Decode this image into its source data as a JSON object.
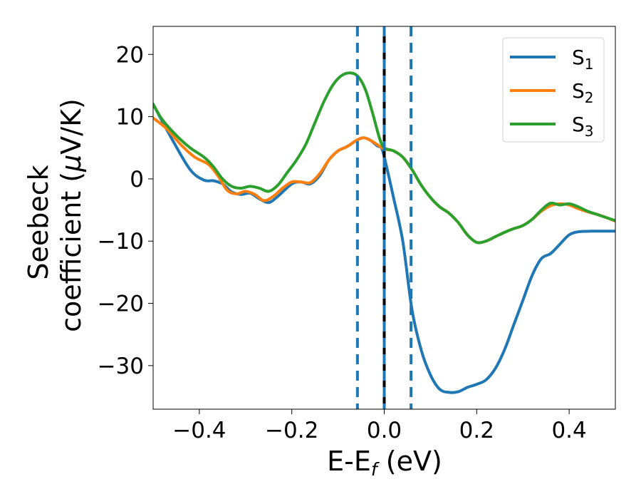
{
  "chart_data": {
    "type": "line",
    "xlabel": "E-E",
    "xlabel_sub": "f",
    "xlabel_unit": " (eV)",
    "ylabel_line1": "Seebeck",
    "ylabel_line2_text": "coefficient  (",
    "ylabel_mu": "μ",
    "ylabel_line2_unit": "V/K)",
    "xlim": [
      -0.5,
      0.5
    ],
    "ylim": [
      -37,
      24.5
    ],
    "x_ticks": [
      -0.4,
      -0.2,
      0.0,
      0.2,
      0.4
    ],
    "x_tick_labels": [
      "−0.4",
      "−0.2",
      "0.0",
      "0.2",
      "0.4"
    ],
    "y_ticks": [
      20,
      10,
      0,
      -10,
      -20,
      -30
    ],
    "y_tick_labels": [
      "20",
      "10",
      "0",
      "−10",
      "−20",
      "−30"
    ],
    "grid": false,
    "legend_position": "top-right",
    "vertical_lines": [
      {
        "x": -0.058,
        "style": "dashed",
        "color": "#1f77b4"
      },
      {
        "x": 0.0,
        "style": "solid-dashed",
        "color": "#000000"
      },
      {
        "x": 0.058,
        "style": "dashed",
        "color": "#1f77b4"
      }
    ],
    "series": [
      {
        "name": "S",
        "sub": "1",
        "color": "#1f77b4",
        "points": [
          [
            -0.5,
            12.0
          ],
          [
            -0.46,
            6.5
          ],
          [
            -0.42,
            1.5
          ],
          [
            -0.39,
            -0.2
          ],
          [
            -0.37,
            -0.3
          ],
          [
            -0.35,
            -0.8
          ],
          [
            -0.33,
            -2.1
          ],
          [
            -0.31,
            -2.5
          ],
          [
            -0.29,
            -2.3
          ],
          [
            -0.27,
            -3.2
          ],
          [
            -0.25,
            -3.8
          ],
          [
            -0.23,
            -2.8
          ],
          [
            -0.2,
            -0.8
          ],
          [
            -0.18,
            -0.5
          ],
          [
            -0.16,
            -0.8
          ],
          [
            -0.14,
            0.5
          ],
          [
            -0.12,
            3.0
          ],
          [
            -0.1,
            4.5
          ],
          [
            -0.08,
            5.2
          ],
          [
            -0.06,
            6.2
          ],
          [
            -0.045,
            6.6
          ],
          [
            -0.03,
            6.2
          ],
          [
            -0.015,
            5.3
          ],
          [
            -0.005,
            4.8
          ],
          [
            0.005,
            2.0
          ],
          [
            0.02,
            -3.0
          ],
          [
            0.04,
            -10.0
          ],
          [
            0.06,
            -21.0
          ],
          [
            0.08,
            -27.5
          ],
          [
            0.1,
            -31.5
          ],
          [
            0.12,
            -33.8
          ],
          [
            0.14,
            -34.3
          ],
          [
            0.16,
            -34.2
          ],
          [
            0.18,
            -33.5
          ],
          [
            0.2,
            -33.0
          ],
          [
            0.22,
            -32.3
          ],
          [
            0.24,
            -30.5
          ],
          [
            0.26,
            -27.5
          ],
          [
            0.28,
            -23.5
          ],
          [
            0.3,
            -19.5
          ],
          [
            0.32,
            -15.5
          ],
          [
            0.34,
            -12.8
          ],
          [
            0.36,
            -12.0
          ],
          [
            0.38,
            -10.5
          ],
          [
            0.4,
            -9.0
          ],
          [
            0.42,
            -8.5
          ],
          [
            0.45,
            -8.4
          ],
          [
            0.5,
            -8.4
          ]
        ]
      },
      {
        "name": "S",
        "sub": "2",
        "color": "#ff7f0e",
        "points": [
          [
            -0.5,
            9.8
          ],
          [
            -0.47,
            8.0
          ],
          [
            -0.44,
            5.5
          ],
          [
            -0.41,
            3.5
          ],
          [
            -0.38,
            2.3
          ],
          [
            -0.36,
            0.5
          ],
          [
            -0.34,
            -1.8
          ],
          [
            -0.32,
            -2.4
          ],
          [
            -0.3,
            -2.0
          ],
          [
            -0.28,
            -2.5
          ],
          [
            -0.26,
            -3.5
          ],
          [
            -0.24,
            -2.8
          ],
          [
            -0.22,
            -1.5
          ],
          [
            -0.2,
            -0.5
          ],
          [
            -0.18,
            -0.5
          ],
          [
            -0.16,
            -0.6
          ],
          [
            -0.14,
            0.8
          ],
          [
            -0.12,
            3.0
          ],
          [
            -0.1,
            4.5
          ],
          [
            -0.08,
            5.2
          ],
          [
            -0.06,
            6.2
          ],
          [
            -0.045,
            6.6
          ],
          [
            -0.03,
            6.2
          ],
          [
            -0.015,
            5.5
          ],
          [
            0.0,
            4.8
          ],
          [
            0.02,
            4.5
          ],
          [
            0.04,
            3.5
          ],
          [
            0.06,
            1.5
          ],
          [
            0.08,
            -1.0
          ],
          [
            0.1,
            -3.0
          ],
          [
            0.12,
            -4.5
          ],
          [
            0.14,
            -5.5
          ],
          [
            0.16,
            -7.0
          ],
          [
            0.18,
            -9.0
          ],
          [
            0.2,
            -10.2
          ],
          [
            0.22,
            -10.0
          ],
          [
            0.24,
            -9.3
          ],
          [
            0.26,
            -8.6
          ],
          [
            0.28,
            -8.0
          ],
          [
            0.3,
            -7.5
          ],
          [
            0.32,
            -6.5
          ],
          [
            0.34,
            -5.2
          ],
          [
            0.36,
            -4.3
          ],
          [
            0.38,
            -4.0
          ],
          [
            0.4,
            -4.2
          ],
          [
            0.42,
            -4.8
          ],
          [
            0.44,
            -5.3
          ],
          [
            0.46,
            -5.7
          ],
          [
            0.48,
            -6.2
          ],
          [
            0.5,
            -6.8
          ]
        ]
      },
      {
        "name": "S",
        "sub": "3",
        "color": "#2ca02c",
        "points": [
          [
            -0.5,
            12.0
          ],
          [
            -0.48,
            9.5
          ],
          [
            -0.45,
            7.0
          ],
          [
            -0.42,
            5.0
          ],
          [
            -0.39,
            3.5
          ],
          [
            -0.37,
            2.0
          ],
          [
            -0.35,
            0.0
          ],
          [
            -0.33,
            -1.2
          ],
          [
            -0.31,
            -1.5
          ],
          [
            -0.29,
            -1.2
          ],
          [
            -0.27,
            -1.5
          ],
          [
            -0.25,
            -2.0
          ],
          [
            -0.23,
            -1.0
          ],
          [
            -0.21,
            1.0
          ],
          [
            -0.19,
            3.0
          ],
          [
            -0.17,
            5.5
          ],
          [
            -0.15,
            9.0
          ],
          [
            -0.13,
            12.5
          ],
          [
            -0.11,
            15.2
          ],
          [
            -0.09,
            16.7
          ],
          [
            -0.07,
            17.0
          ],
          [
            -0.055,
            16.3
          ],
          [
            -0.04,
            14.2
          ],
          [
            -0.025,
            10.5
          ],
          [
            -0.01,
            6.5
          ],
          [
            0.0,
            5.0
          ],
          [
            0.02,
            4.5
          ],
          [
            0.04,
            3.5
          ],
          [
            0.06,
            1.5
          ],
          [
            0.08,
            -1.0
          ],
          [
            0.1,
            -3.0
          ],
          [
            0.12,
            -4.5
          ],
          [
            0.14,
            -5.5
          ],
          [
            0.16,
            -7.0
          ],
          [
            0.18,
            -9.0
          ],
          [
            0.2,
            -10.2
          ],
          [
            0.22,
            -10.0
          ],
          [
            0.24,
            -9.3
          ],
          [
            0.26,
            -8.6
          ],
          [
            0.28,
            -8.0
          ],
          [
            0.3,
            -7.5
          ],
          [
            0.32,
            -6.5
          ],
          [
            0.34,
            -5.0
          ],
          [
            0.36,
            -3.9
          ],
          [
            0.38,
            -4.2
          ],
          [
            0.4,
            -4.0
          ],
          [
            0.42,
            -4.5
          ],
          [
            0.44,
            -5.2
          ],
          [
            0.46,
            -5.7
          ],
          [
            0.48,
            -6.2
          ],
          [
            0.5,
            -6.7
          ]
        ]
      }
    ]
  }
}
